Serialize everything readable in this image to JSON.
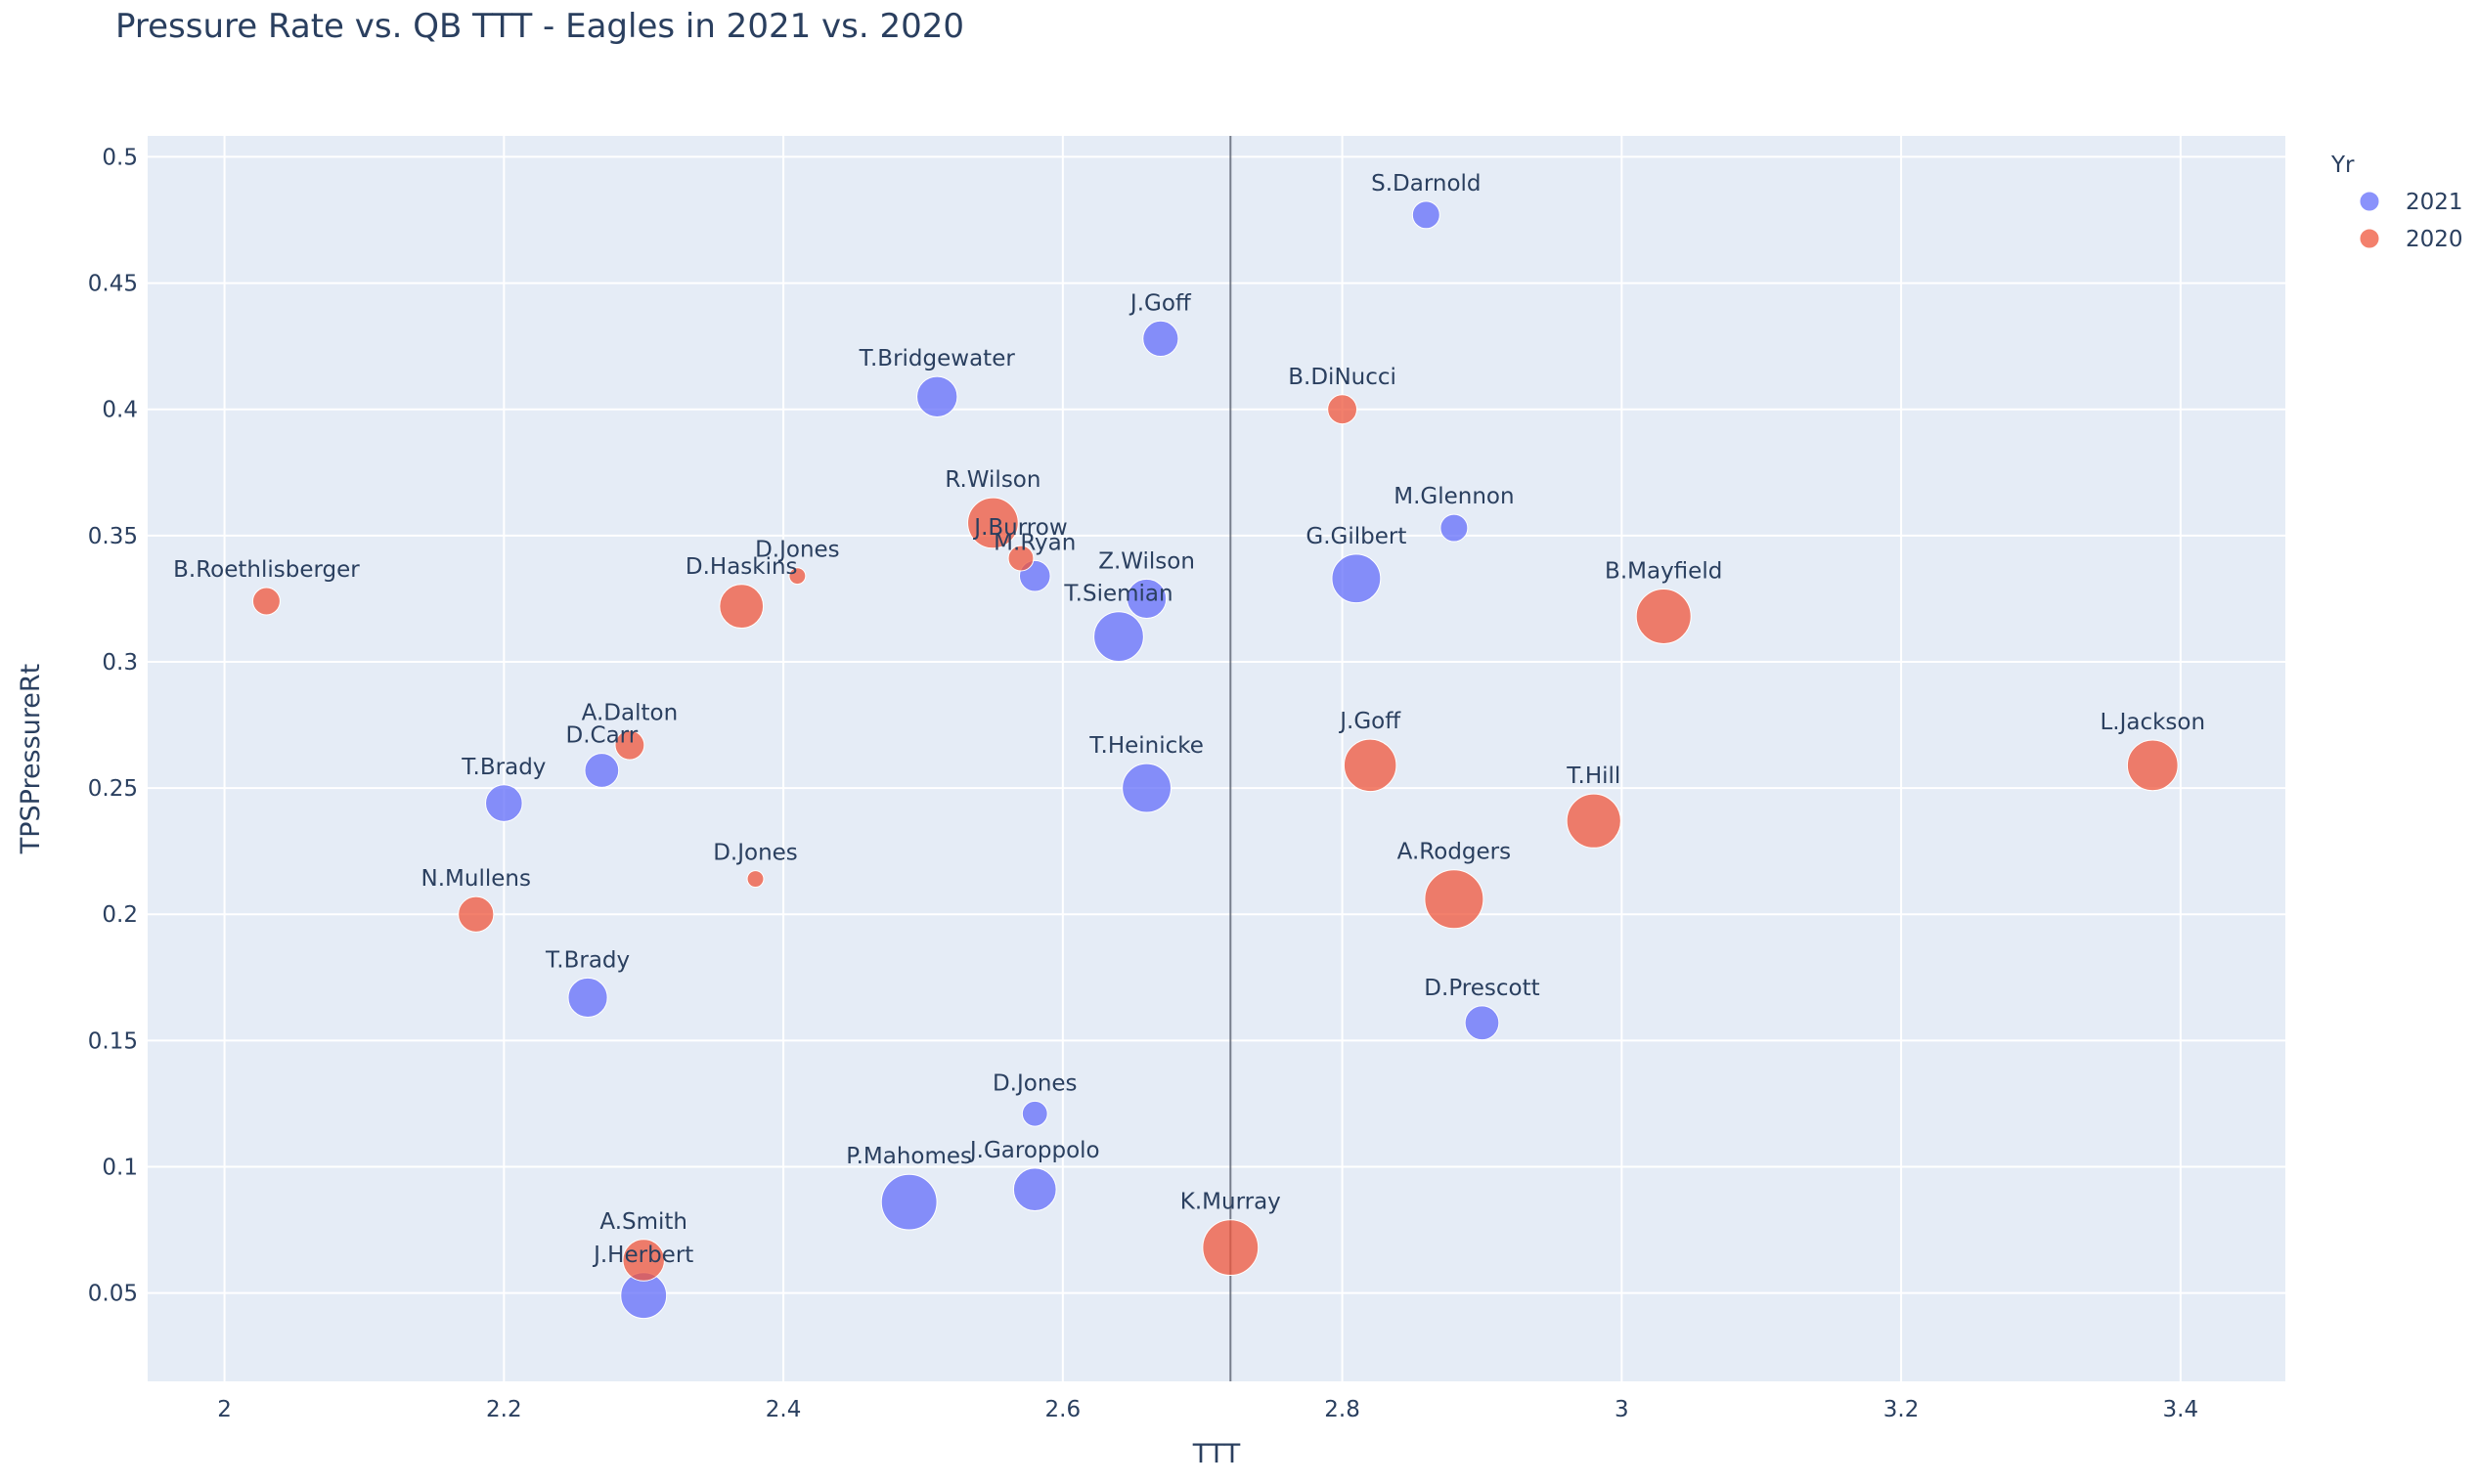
{
  "chart_data": {
    "type": "scatter",
    "title": "Pressure Rate vs. QB TTT - Eagles in 2021 vs. 2020",
    "xlabel": "TTT",
    "ylabel": "TPSPressureRt",
    "xlim": [
      1.945,
      3.475
    ],
    "ylim": [
      0.015,
      0.5083
    ],
    "x_ticks": [
      "2",
      "2.2",
      "2.4",
      "2.6",
      "2.8",
      "3",
      "3.2",
      "3.4"
    ],
    "y_ticks": [
      "0.05",
      "0.1",
      "0.15",
      "0.2",
      "0.25",
      "0.3",
      "0.35",
      "0.4",
      "0.45",
      "0.5"
    ],
    "vline_x": 2.72,
    "legend": {
      "title": "Yr",
      "position": "top-right",
      "entries": [
        {
          "name": "2021",
          "color": "#636efa"
        },
        {
          "name": "2020",
          "color": "#ef553b"
        }
      ]
    },
    "series": [
      {
        "name": "2021",
        "color": "#636efa",
        "points": [
          {
            "label": "S.Darnold",
            "x": 2.86,
            "y": 0.477,
            "size": 5
          },
          {
            "label": "J.Goff",
            "x": 2.67,
            "y": 0.428,
            "size": 10
          },
          {
            "label": "T.Bridgewater",
            "x": 2.51,
            "y": 0.405,
            "size": 14
          },
          {
            "label": "M.Glennon",
            "x": 2.88,
            "y": 0.353,
            "size": 5
          },
          {
            "label": "G.Gilbert",
            "x": 2.81,
            "y": 0.333,
            "size": 22
          },
          {
            "label": "M.Ryan",
            "x": 2.58,
            "y": 0.334,
            "size": 7
          },
          {
            "label": "Z.Wilson",
            "x": 2.66,
            "y": 0.325,
            "size": 13
          },
          {
            "label": "T.Siemian",
            "x": 2.64,
            "y": 0.31,
            "size": 23
          },
          {
            "label": "D.Carr",
            "x": 2.27,
            "y": 0.257,
            "size": 9
          },
          {
            "label": "T.Brady",
            "x": 2.2,
            "y": 0.244,
            "size": 11
          },
          {
            "label": "T.Heinicke",
            "x": 2.66,
            "y": 0.25,
            "size": 22
          },
          {
            "label": "T.Brady",
            "x": 2.26,
            "y": 0.167,
            "size": 13
          },
          {
            "label": "D.Prescott",
            "x": 2.9,
            "y": 0.157,
            "size": 9
          },
          {
            "label": "D.Jones",
            "x": 2.58,
            "y": 0.121,
            "size": 4
          },
          {
            "label": "J.Garoppolo",
            "x": 2.58,
            "y": 0.091,
            "size": 16
          },
          {
            "label": "P.Mahomes",
            "x": 2.49,
            "y": 0.086,
            "size": 30
          },
          {
            "label": "J.Herbert",
            "x": 2.3,
            "y": 0.049,
            "size": 19
          }
        ]
      },
      {
        "name": "2020",
        "color": "#ef553b",
        "points": [
          {
            "label": "B.DiNucci",
            "x": 2.8,
            "y": 0.4,
            "size": 6
          },
          {
            "label": "R.Wilson",
            "x": 2.55,
            "y": 0.355,
            "size": 24
          },
          {
            "label": "J.Burrow",
            "x": 2.57,
            "y": 0.341,
            "size": 4
          },
          {
            "label": "D.Jones",
            "x": 2.41,
            "y": 0.334,
            "size": 1
          },
          {
            "label": "B.Roethlisberger",
            "x": 2.03,
            "y": 0.324,
            "size": 5
          },
          {
            "label": "D.Haskins",
            "x": 2.37,
            "y": 0.322,
            "size": 17
          },
          {
            "label": "B.Mayfield",
            "x": 3.03,
            "y": 0.318,
            "size": 29
          },
          {
            "label": "A.Dalton",
            "x": 2.29,
            "y": 0.267,
            "size": 6
          },
          {
            "label": "J.Goff",
            "x": 2.82,
            "y": 0.259,
            "size": 26
          },
          {
            "label": "L.Jackson",
            "x": 3.38,
            "y": 0.259,
            "size": 24
          },
          {
            "label": "T.Hill",
            "x": 2.98,
            "y": 0.237,
            "size": 28
          },
          {
            "label": "D.Jones",
            "x": 2.38,
            "y": 0.214,
            "size": 1
          },
          {
            "label": "A.Rodgers",
            "x": 2.88,
            "y": 0.206,
            "size": 34
          },
          {
            "label": "N.Mullens",
            "x": 2.18,
            "y": 0.2,
            "size": 10
          },
          {
            "label": "K.Murray",
            "x": 2.72,
            "y": 0.068,
            "size": 30
          },
          {
            "label": "A.Smith",
            "x": 2.3,
            "y": 0.063,
            "size": 15
          }
        ]
      }
    ]
  }
}
